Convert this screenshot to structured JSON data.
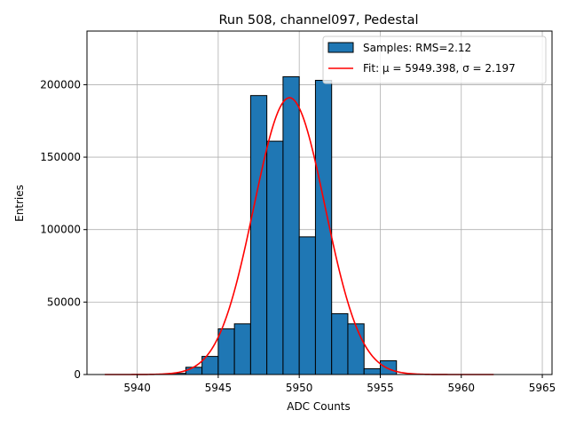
{
  "chart_data": {
    "type": "bar",
    "title": "Run 508, channel097, Pedestal",
    "xlabel": "ADC Counts",
    "ylabel": "Entries",
    "xlim": [
      5936.9,
      5965.6
    ],
    "ylim": [
      0,
      237000
    ],
    "xticks": [
      5940,
      5945,
      5950,
      5955,
      5960,
      5965
    ],
    "yticks": [
      0,
      50000,
      100000,
      150000,
      200000
    ],
    "grid": true,
    "legend_position": "top-right",
    "bar_color": "#1f77b4",
    "fit_color": "#ff0000",
    "histogram": {
      "name": "Samples: RMS=2.12",
      "bins": [
        {
          "x0": 5942,
          "x1": 5943,
          "value": 800
        },
        {
          "x0": 5943,
          "x1": 5944,
          "value": 5000
        },
        {
          "x0": 5944,
          "x1": 5945,
          "value": 12500
        },
        {
          "x0": 5945,
          "x1": 5946,
          "value": 31500
        },
        {
          "x0": 5946,
          "x1": 5947,
          "value": 35000
        },
        {
          "x0": 5947,
          "x1": 5948,
          "value": 192500
        },
        {
          "x0": 5948,
          "x1": 5949,
          "value": 161000
        },
        {
          "x0": 5949,
          "x1": 5950,
          "value": 205500
        },
        {
          "x0": 5950,
          "x1": 5951,
          "value": 95000
        },
        {
          "x0": 5951,
          "x1": 5952,
          "value": 203000
        },
        {
          "x0": 5952,
          "x1": 5953,
          "value": 42000
        },
        {
          "x0": 5953,
          "x1": 5954,
          "value": 35000
        },
        {
          "x0": 5954,
          "x1": 5955,
          "value": 4000
        },
        {
          "x0": 5955,
          "x1": 5956,
          "value": 9500
        }
      ]
    },
    "fit": {
      "label_prefix": "Fit: ",
      "mu_symbol": "μ",
      "mu": "5949.398",
      "sigma_symbol": "σ",
      "sigma": "2.197",
      "amplitude": 191000,
      "x_range": [
        5938,
        5962
      ]
    },
    "legend": {
      "samples_label": "Samples: RMS=2.12",
      "fit_label": "Fit: μ = 5949.398, σ = 2.197"
    }
  }
}
